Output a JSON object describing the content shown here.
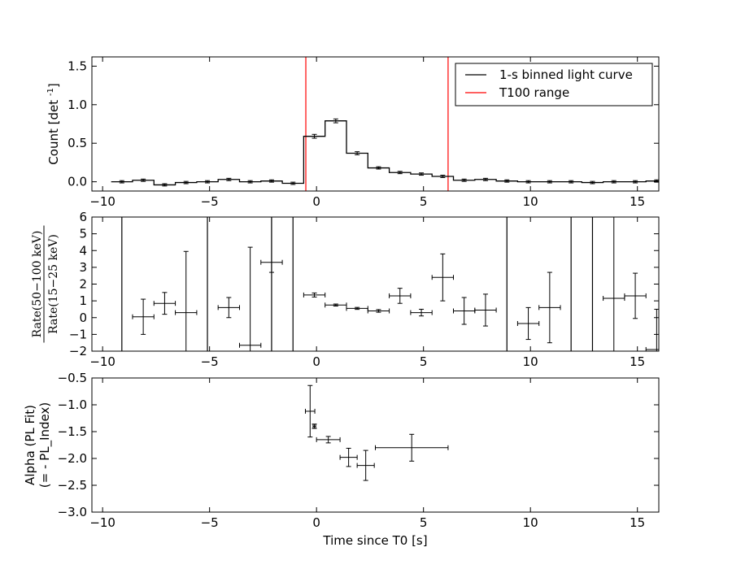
{
  "chart_data": [
    {
      "type": "line",
      "panel": "top",
      "xlabel": "",
      "ylabel": "Count [det",
      "ylabel_superscript": "-1",
      "ylabel_suffix": "]",
      "xlim": [
        -10.5,
        16.0
      ],
      "ylim": [
        -0.12,
        1.62
      ],
      "xticks": [
        -10,
        -5,
        0,
        5,
        10,
        15
      ],
      "yticks": [
        0.0,
        0.5,
        1.0,
        1.5
      ],
      "ytick_labels": [
        "0.0",
        "0.5",
        "1.0",
        "1.5"
      ],
      "xtick_labels": [
        "−10",
        "−5",
        "0",
        "5",
        "10",
        "15"
      ],
      "legend_position": "top-right",
      "legend": [
        "1-s binned light curve",
        "T100 range"
      ],
      "series": [
        {
          "name": "1-s binned light curve",
          "color": "#000000",
          "step": true,
          "bin_edges": [
            -9.6,
            -8.6,
            -7.6,
            -6.6,
            -5.6,
            -4.6,
            -3.6,
            -2.6,
            -1.6,
            -0.6,
            0.4,
            1.4,
            2.4,
            3.4,
            4.4,
            5.4,
            6.4,
            7.4,
            8.4,
            9.4,
            10.4,
            11.4,
            12.4,
            13.4,
            14.4,
            15.4,
            16.4
          ],
          "x": [
            -9.1,
            -8.1,
            -7.1,
            -6.1,
            -5.1,
            -4.1,
            -3.1,
            -2.1,
            -1.1,
            -0.1,
            0.9,
            1.9,
            2.9,
            3.9,
            4.9,
            5.9,
            6.9,
            7.9,
            8.9,
            9.9,
            10.9,
            11.9,
            12.9,
            13.9,
            14.9,
            15.9
          ],
          "values": [
            0.0,
            0.02,
            -0.04,
            -0.01,
            0.0,
            0.03,
            0.0,
            0.01,
            -0.02,
            0.59,
            0.79,
            0.37,
            0.18,
            0.12,
            0.1,
            0.07,
            0.02,
            0.03,
            0.01,
            0.0,
            0.0,
            0.0,
            -0.01,
            0.0,
            0.0,
            0.01
          ],
          "errors": [
            0.015,
            0.015,
            0.015,
            0.015,
            0.015,
            0.015,
            0.015,
            0.015,
            0.015,
            0.025,
            0.025,
            0.02,
            0.015,
            0.015,
            0.015,
            0.015,
            0.015,
            0.015,
            0.015,
            0.015,
            0.015,
            0.015,
            0.015,
            0.015,
            0.015,
            0.015
          ]
        }
      ],
      "vlines": [
        {
          "name": "T100 range",
          "color": "#ff0000",
          "x": -0.5
        },
        {
          "name": "T100 range",
          "color": "#ff0000",
          "x": 6.15
        }
      ]
    },
    {
      "type": "scatter",
      "panel": "middle",
      "xlabel": "",
      "ylabel_numerator": "Rate(50−100 keV)",
      "ylabel_denominator": "Rate(15−25 keV)",
      "xlim": [
        -10.5,
        16.0
      ],
      "ylim": [
        -2,
        6
      ],
      "xticks": [
        -10,
        -5,
        0,
        5,
        10,
        15
      ],
      "yticks": [
        -2,
        -1,
        0,
        1,
        2,
        3,
        4,
        5,
        6
      ],
      "ytick_labels": [
        "−2",
        "−1",
        "0",
        "1",
        "2",
        "3",
        "4",
        "5",
        "6"
      ],
      "xtick_labels": [
        "−10",
        "−5",
        "0",
        "5",
        "10",
        "15"
      ],
      "series": [
        {
          "name": "",
          "color": "#000000",
          "x": [
            -8.1,
            -7.1,
            -6.1,
            -4.1,
            -3.1,
            -2.1,
            -0.1,
            0.9,
            1.9,
            2.9,
            3.9,
            4.9,
            5.9,
            6.9,
            7.9,
            9.9,
            10.9,
            13.9,
            14.9,
            15.9
          ],
          "xerr": [
            0.5,
            0.5,
            0.5,
            0.5,
            0.5,
            0.5,
            0.5,
            0.5,
            0.5,
            0.5,
            0.5,
            0.5,
            0.5,
            0.5,
            0.5,
            0.5,
            0.5,
            0.5,
            0.5,
            0.5
          ],
          "y": [
            0.05,
            0.85,
            0.3,
            0.6,
            -1.65,
            3.3,
            1.35,
            0.75,
            0.55,
            0.4,
            1.3,
            0.3,
            2.4,
            0.4,
            0.45,
            -0.35,
            0.6,
            1.15,
            1.3,
            -1.9
          ],
          "yerr_low": [
            1.05,
            0.65,
            8.0,
            0.6,
            5.0,
            0.6,
            0.12,
            0.06,
            0.06,
            0.08,
            0.45,
            0.2,
            1.4,
            0.8,
            0.95,
            0.95,
            2.1,
            5.0,
            1.35,
            5.0
          ],
          "yerr_high": [
            1.05,
            0.65,
            3.65,
            0.6,
            5.85,
            5.0,
            0.12,
            0.06,
            0.06,
            0.08,
            0.45,
            0.2,
            1.4,
            0.8,
            0.95,
            0.95,
            2.1,
            5.0,
            1.35,
            2.4
          ]
        }
      ],
      "vlines": [
        {
          "color": "#000000",
          "x": -9.1
        },
        {
          "color": "#000000",
          "x": -5.1
        },
        {
          "color": "#000000",
          "x": -2.1
        },
        {
          "color": "#000000",
          "x": -1.1
        },
        {
          "color": "#000000",
          "x": 8.9
        },
        {
          "color": "#000000",
          "x": 11.9
        },
        {
          "color": "#000000",
          "x": 12.9
        }
      ]
    },
    {
      "type": "scatter",
      "panel": "bottom",
      "xlabel": "Time since T0 [s]",
      "ylabel_line1": "Alpha (PL Fit)",
      "ylabel_line2": "(= - PL_Index)",
      "xlim": [
        -10.5,
        16.0
      ],
      "ylim": [
        -3.0,
        -0.5
      ],
      "xticks": [
        -10,
        -5,
        0,
        5,
        10,
        15
      ],
      "yticks": [
        -3.0,
        -2.5,
        -2.0,
        -1.5,
        -1.0,
        -0.5
      ],
      "ytick_labels": [
        "−3.0",
        "−2.5",
        "−2.0",
        "−1.5",
        "−1.0",
        "−0.5"
      ],
      "xtick_labels": [
        "−10",
        "−5",
        "0",
        "5",
        "10",
        "15"
      ],
      "series": [
        {
          "name": "",
          "color": "#000000",
          "x": [
            -0.3,
            -0.1,
            0.55,
            1.5,
            2.3,
            4.45
          ],
          "xerr": [
            0.22,
            0.06,
            0.55,
            0.4,
            0.4,
            1.7
          ],
          "y": [
            -1.12,
            -1.4,
            -1.65,
            -1.98,
            -2.13,
            -1.8
          ],
          "yerr": [
            0.48,
            0.04,
            0.06,
            0.17,
            0.28,
            0.25
          ]
        }
      ]
    }
  ]
}
